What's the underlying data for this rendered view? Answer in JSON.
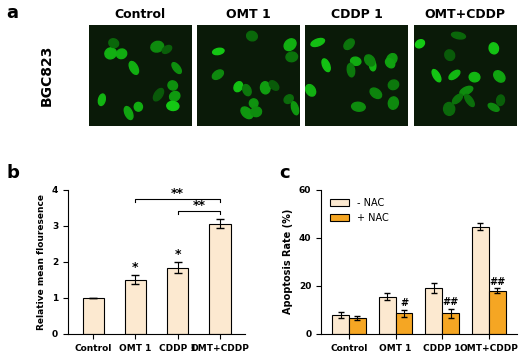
{
  "panel_a": {
    "panel_label": "a",
    "row_label": "BGC823",
    "columns": [
      "Control",
      "OMT 1",
      "CDDP 1",
      "OMT+CDDP"
    ]
  },
  "chart_data": [
    {
      "panel_label": "b",
      "type": "bar",
      "y_label": "Relative mean flouresence",
      "categories": [
        "Control",
        "OMT 1",
        "CDDP 1",
        "OMT+CDDP"
      ],
      "values": [
        1.0,
        1.5,
        1.83,
        3.05
      ],
      "errors": [
        0.0,
        0.12,
        0.15,
        0.12
      ],
      "color": "#fce9d0",
      "ylim": [
        0,
        4
      ],
      "yticks": [
        0,
        1,
        2,
        3,
        4
      ],
      "annotations": [
        {
          "category": "OMT 1",
          "text": "*"
        },
        {
          "category": "CDDP 1",
          "text": "*"
        }
      ],
      "brackets": [
        {
          "from": "OMT 1",
          "to": "OMT+CDDP",
          "text": "**"
        },
        {
          "from": "CDDP 1",
          "to": "OMT+CDDP",
          "text": "**"
        }
      ]
    },
    {
      "panel_label": "c",
      "type": "grouped_bar",
      "y_label": "Apoptosis Rate (%)",
      "categories": [
        "Control",
        "OMT 1",
        "CDDP 1",
        "OMT+CDDP"
      ],
      "series": [
        {
          "name": "- NAC",
          "color": "#fce9d0",
          "values": [
            8.0,
            15.5,
            19.0,
            44.5
          ],
          "errors": [
            1.2,
            1.5,
            2.0,
            1.5
          ]
        },
        {
          "name": "+ NAC",
          "color": "#f5a623",
          "values": [
            6.5,
            8.5,
            8.5,
            18.0
          ],
          "errors": [
            0.8,
            1.5,
            2.0,
            1.0
          ],
          "annotations": [
            null,
            "#",
            "##",
            "##"
          ]
        }
      ],
      "ylim": [
        0,
        60
      ],
      "yticks": [
        0,
        20,
        40,
        60
      ],
      "legend": "upper left"
    }
  ]
}
